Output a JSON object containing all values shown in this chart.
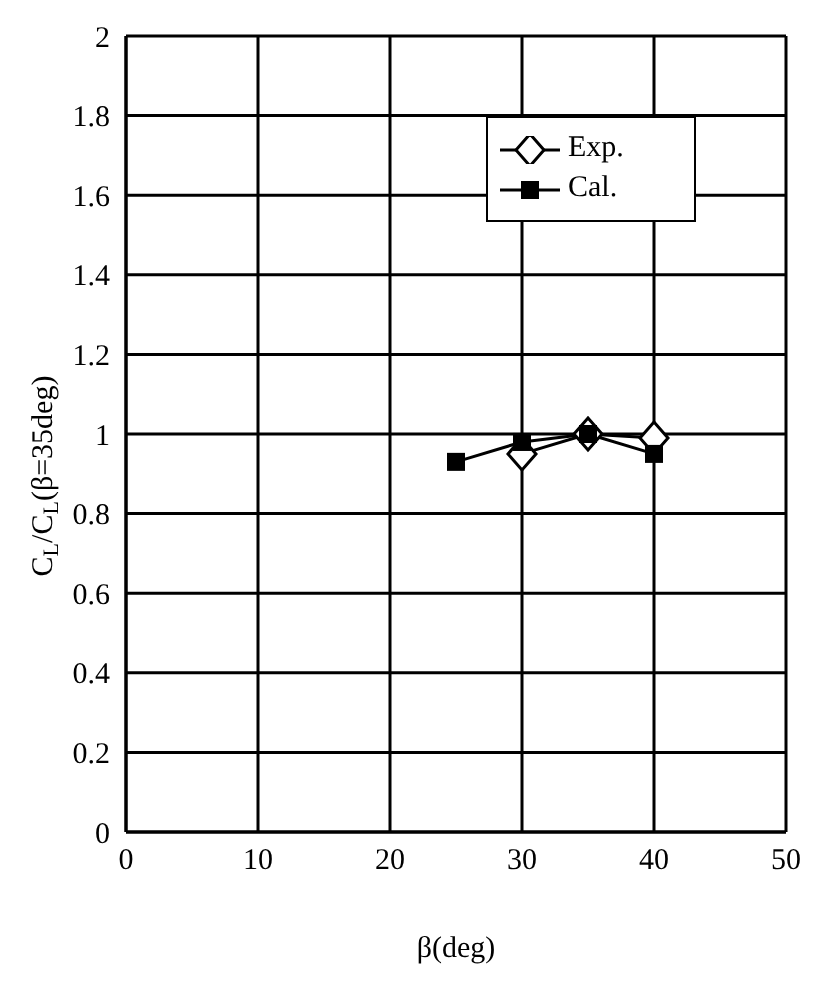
{
  "chart_data": {
    "type": "line",
    "xlabel": "β(deg)",
    "ylabel": "C$_{L}$/C$_{L}$(β=35deg)",
    "xlim": [
      0,
      50
    ],
    "xticks": [
      0,
      10,
      20,
      30,
      40,
      50
    ],
    "ylim": [
      0,
      2
    ],
    "yticks": [
      0,
      0.2,
      0.4,
      0.6,
      0.8,
      1,
      1.2,
      1.4,
      1.6,
      1.8,
      2
    ],
    "grid": true,
    "legend": "top right",
    "series": [
      {
        "name": "Exp.",
        "color": "#000000",
        "marker": "diamond",
        "x": [
          30,
          35,
          40
        ],
        "values": [
          0.95,
          1.0,
          0.99
        ]
      },
      {
        "name": "Cal.",
        "color": "#000000",
        "marker": "square",
        "x": [
          25,
          30,
          35,
          40
        ],
        "values": [
          0.93,
          0.98,
          1.0,
          0.95
        ]
      }
    ]
  }
}
